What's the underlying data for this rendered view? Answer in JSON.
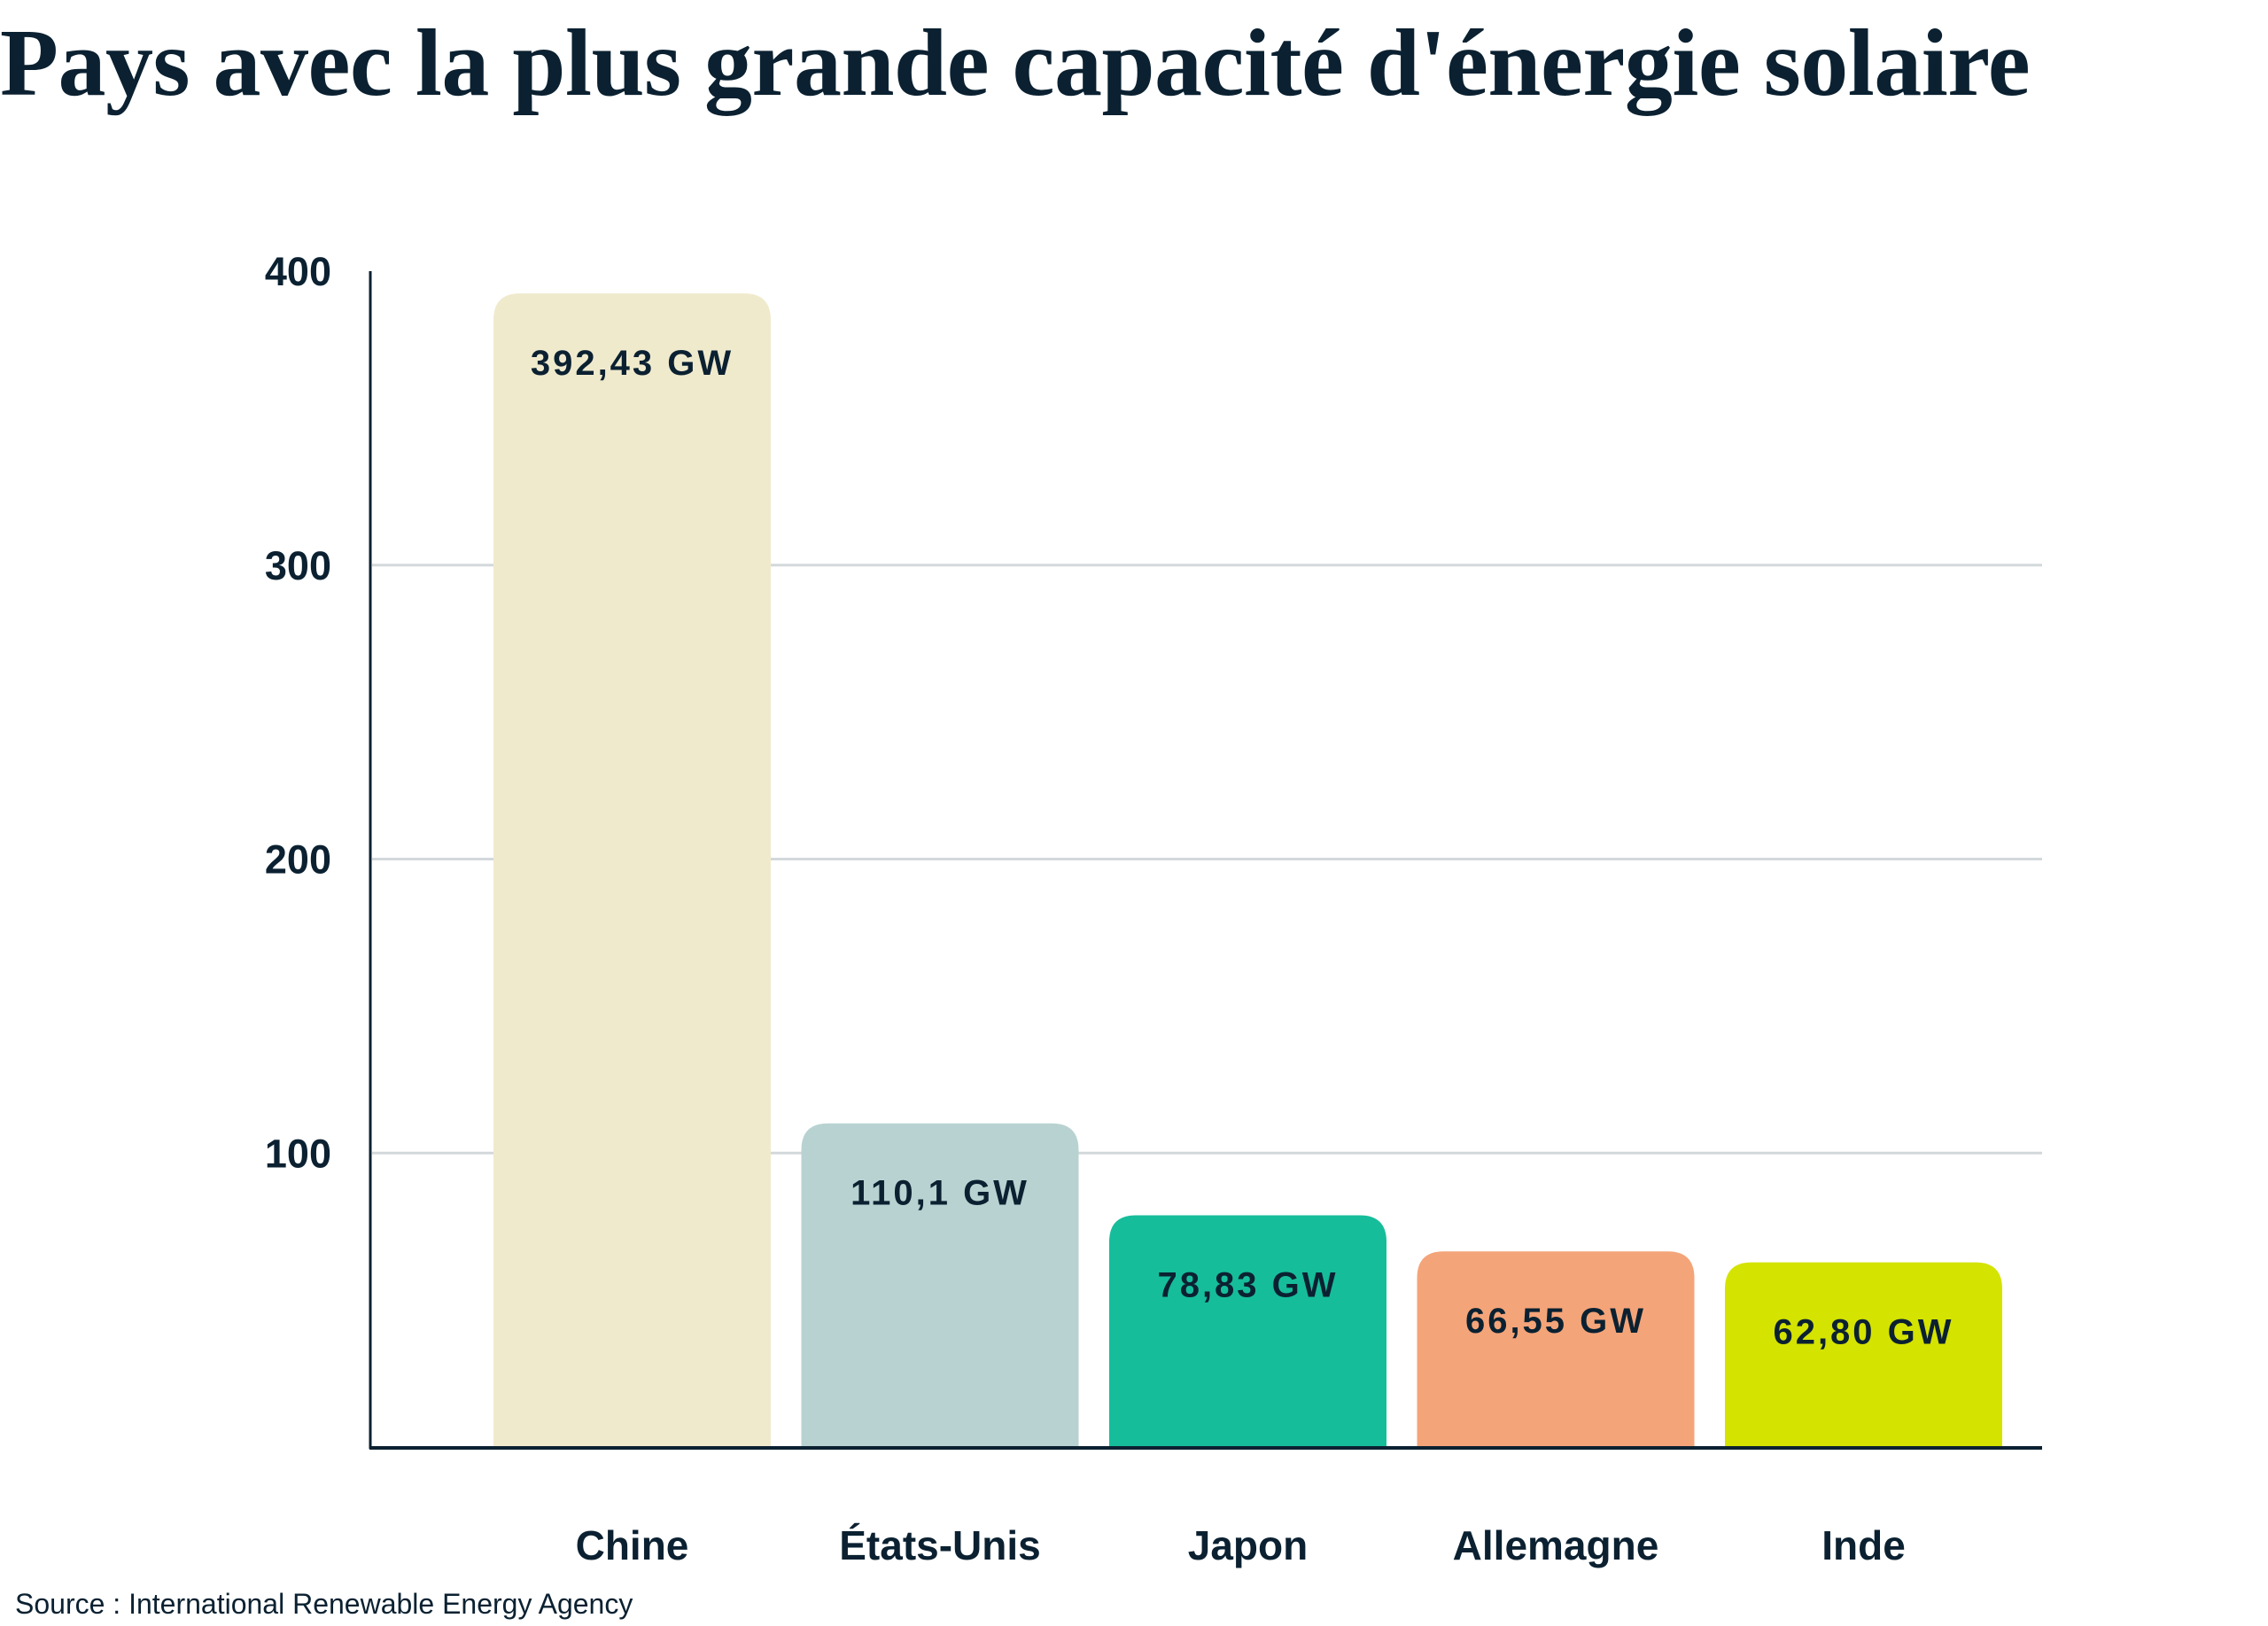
{
  "chart_data": {
    "type": "bar",
    "title": "Pays avec la plus grande capacité d'énergie solaire",
    "categories": [
      "Chine",
      "États-Unis",
      "Japon",
      "Allemagne",
      "Inde"
    ],
    "values": [
      392.43,
      110.1,
      78.83,
      66.55,
      62.8
    ],
    "data_labels": [
      "392,43 GW",
      "110,1 GW",
      "78,83 GW",
      "66,55 GW",
      "62,80 GW"
    ],
    "colors": [
      "#f0eacd",
      "#b8d2d1",
      "#16bd9b",
      "#f4a479",
      "#d4e300"
    ],
    "xlabel": "",
    "ylabel": "",
    "ylim": [
      0,
      400
    ],
    "yticks": [
      100,
      200,
      300,
      400
    ],
    "grid": true,
    "source": "Source : International Renewable Energy Agency"
  }
}
